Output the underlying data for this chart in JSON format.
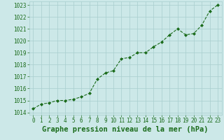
{
  "x": [
    0,
    1,
    2,
    3,
    4,
    5,
    6,
    7,
    8,
    9,
    10,
    11,
    12,
    13,
    14,
    15,
    16,
    17,
    18,
    19,
    20,
    21,
    22,
    23
  ],
  "y": [
    1014.3,
    1014.7,
    1014.8,
    1015.0,
    1015.0,
    1015.1,
    1015.3,
    1015.6,
    1016.8,
    1017.3,
    1017.5,
    1018.5,
    1018.6,
    1019.0,
    1019.0,
    1019.5,
    1019.9,
    1020.5,
    1021.0,
    1020.5,
    1020.6,
    1021.3,
    1022.5,
    1023.0
  ],
  "ylim": [
    1013.8,
    1023.3
  ],
  "xlim": [
    -0.5,
    23.5
  ],
  "yticks": [
    1014,
    1015,
    1016,
    1017,
    1018,
    1019,
    1020,
    1021,
    1022,
    1023
  ],
  "xticks": [
    0,
    1,
    2,
    3,
    4,
    5,
    6,
    7,
    8,
    9,
    10,
    11,
    12,
    13,
    14,
    15,
    16,
    17,
    18,
    19,
    20,
    21,
    22,
    23
  ],
  "xlabel": "Graphe pression niveau de la mer (hPa)",
  "line_color": "#1a6b1a",
  "marker_color": "#1a6b1a",
  "bg_color": "#cce8e8",
  "grid_color": "#a8cece",
  "tick_label_color": "#1a6b1a",
  "xlabel_color": "#1a6b1a",
  "tick_fontsize": 5.5,
  "xlabel_fontsize": 7.5
}
